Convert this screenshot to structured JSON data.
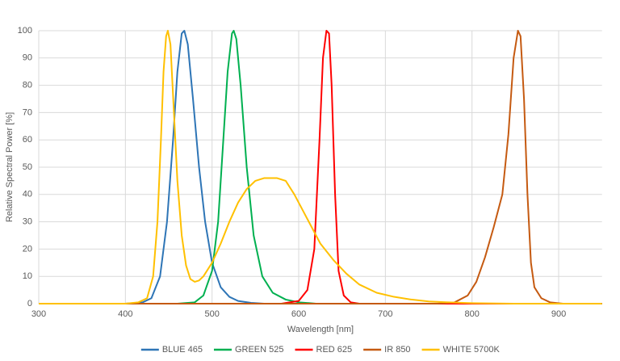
{
  "chart_data": {
    "type": "line",
    "x_label": "Wavelength [nm]",
    "y_label": "Relative Spectral Power [%]",
    "xlim": [
      300,
      950
    ],
    "xticks": [
      300,
      400,
      500,
      600,
      700,
      800,
      900
    ],
    "ylim": [
      0,
      100
    ],
    "yticks": [
      0,
      10,
      20,
      30,
      40,
      50,
      60,
      70,
      80,
      90,
      100
    ],
    "grid": true,
    "legend": "bottom",
    "series": [
      {
        "name": "BLUE 465",
        "color": "#2e75b6",
        "x": [
          300,
          400,
          420,
          430,
          440,
          448,
          455,
          460,
          465,
          468,
          472,
          478,
          485,
          492,
          500,
          510,
          520,
          530,
          545,
          560,
          950
        ],
        "values": [
          0,
          0,
          0.5,
          2,
          10,
          30,
          60,
          85,
          99,
          100,
          95,
          75,
          50,
          30,
          15,
          6,
          2.5,
          1,
          0.3,
          0,
          0
        ]
      },
      {
        "name": "GREEN 525",
        "color": "#00b050",
        "x": [
          300,
          460,
          480,
          490,
          500,
          507,
          513,
          518,
          523,
          525,
          528,
          533,
          540,
          548,
          558,
          570,
          585,
          600,
          620,
          950
        ],
        "values": [
          0,
          0,
          0.5,
          3,
          12,
          30,
          60,
          85,
          99,
          100,
          97,
          80,
          50,
          25,
          10,
          4,
          1.5,
          0.5,
          0,
          0
        ]
      },
      {
        "name": "RED 625",
        "color": "#ff0000",
        "x": [
          300,
          580,
          600,
          610,
          618,
          624,
          628,
          632,
          635,
          638,
          642,
          646,
          652,
          660,
          670,
          950
        ],
        "values": [
          0,
          0,
          1,
          5,
          20,
          60,
          90,
          100,
          99,
          80,
          40,
          12,
          3,
          0.5,
          0,
          0
        ]
      },
      {
        "name": "IR 850",
        "color": "#c55a11",
        "x": [
          300,
          760,
          780,
          795,
          805,
          815,
          825,
          835,
          842,
          848,
          853,
          856,
          860,
          864,
          868,
          872,
          880,
          890,
          905,
          950
        ],
        "values": [
          0,
          0,
          0.5,
          3,
          8,
          17,
          28,
          40,
          62,
          90,
          100,
          98,
          75,
          40,
          15,
          6,
          2,
          0.5,
          0,
          0
        ]
      },
      {
        "name": "WHITE 5700K",
        "color": "#ffc000",
        "x": [
          300,
          400,
          415,
          425,
          432,
          437,
          441,
          444,
          447,
          449,
          452,
          456,
          460,
          465,
          470,
          475,
          480,
          485,
          490,
          500,
          510,
          520,
          530,
          540,
          550,
          560,
          575,
          585,
          595,
          605,
          615,
          625,
          640,
          655,
          670,
          690,
          710,
          730,
          750,
          770,
          800,
          850,
          950
        ],
        "values": [
          0,
          0,
          0.5,
          2,
          10,
          30,
          60,
          85,
          98,
          100,
          95,
          70,
          45,
          25,
          14,
          9,
          8,
          8.5,
          10,
          15,
          22,
          30,
          37,
          42,
          45,
          46,
          46,
          45,
          40,
          34,
          28,
          22,
          16,
          11,
          7,
          4,
          2.5,
          1.5,
          0.8,
          0.5,
          0.2,
          0,
          0
        ]
      }
    ]
  }
}
